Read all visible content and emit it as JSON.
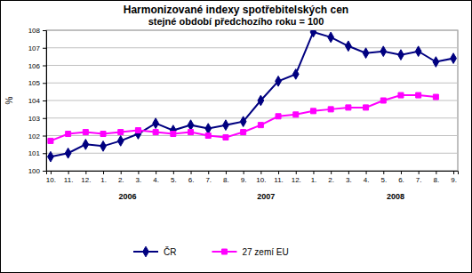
{
  "chart_data": {
    "type": "line",
    "title": "Harmonizované indexy spotřebitelských cen",
    "subtitle": "stejné období předchozího roku = 100",
    "y_label": "%",
    "annotations": [
      "2006",
      "2007",
      "2008"
    ],
    "categories": [
      "10.",
      "11.",
      "12.",
      "1.",
      "2.",
      "3.",
      "4.",
      "5.",
      "6.",
      "7.",
      "8.",
      "9.",
      "10.",
      "11.",
      "12.",
      "1.",
      "2.",
      "3.",
      "4.",
      "5.",
      "6.",
      "7.",
      "8.",
      "9."
    ],
    "series": [
      {
        "name": "ČR",
        "color": "#000080",
        "marker": "diamond",
        "line_style": "solid",
        "values": [
          100.8,
          101.0,
          101.5,
          101.4,
          101.7,
          102.1,
          102.7,
          102.3,
          102.6,
          102.4,
          102.6,
          102.8,
          104.0,
          105.1,
          105.5,
          107.9,
          107.6,
          107.1,
          106.7,
          106.8,
          106.6,
          106.8,
          106.2,
          106.4
        ]
      },
      {
        "name": "27 zemí EU",
        "color": "#ff00ff",
        "marker": "square",
        "line_style": "solid",
        "values": [
          101.7,
          102.1,
          102.2,
          102.1,
          102.2,
          102.3,
          102.2,
          102.1,
          102.2,
          102.0,
          101.9,
          102.2,
          102.6,
          103.1,
          103.2,
          103.4,
          103.5,
          103.6,
          103.6,
          104.0,
          104.3,
          104.3,
          104.2,
          null
        ]
      }
    ],
    "ylim": [
      100,
      108
    ],
    "yticks": [
      100,
      101,
      102,
      103,
      104,
      105,
      106,
      107,
      108
    ],
    "grid": true,
    "legend": "bottom"
  }
}
